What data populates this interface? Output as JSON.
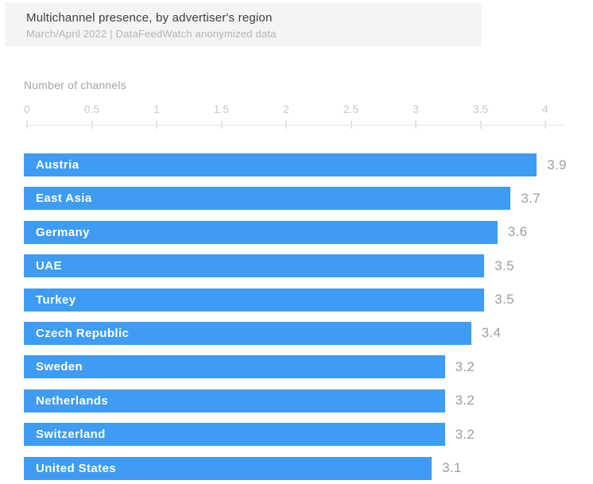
{
  "header": {
    "title": "Multichannel presence, by advertiser's region",
    "subtitle": "March/April 2022 | DataFeedWatch anonymized data"
  },
  "axis": {
    "label": "Number of channels",
    "tick_labels": [
      "0",
      "0.5",
      "1",
      "1.5",
      "2",
      "2.5",
      "3",
      "3.5",
      "4"
    ]
  },
  "chart_data": {
    "type": "bar",
    "orientation": "horizontal",
    "title": "Multichannel presence, by advertiser's region",
    "subtitle": "March/April 2022 | DataFeedWatch anonymized data",
    "xlabel": "Number of channels",
    "ylabel": "",
    "xlim": [
      0,
      4
    ],
    "x_ticks": [
      0,
      0.5,
      1,
      1.5,
      2,
      2.5,
      3,
      3.5,
      4
    ],
    "grid": false,
    "legend": false,
    "categories": [
      "Austria",
      "East Asia",
      "Germany",
      "UAE",
      "Turkey",
      "Czech Republic",
      "Sweden",
      "Netherlands",
      "Switzerland",
      "United States"
    ],
    "values": [
      3.9,
      3.7,
      3.6,
      3.5,
      3.5,
      3.4,
      3.2,
      3.2,
      3.2,
      3.1
    ],
    "value_labels": [
      "3.9",
      "3.7",
      "3.6",
      "3.5",
      "3.5",
      "3.4",
      "3.2",
      "3.2",
      "3.2",
      "3.1"
    ]
  },
  "colors": {
    "bar": "#3e9cf5",
    "bar_label": "#ffffff",
    "value_label": "#9d9d9d",
    "header_bg": "#f4f4f6",
    "title": "#3d3d3d",
    "subtitle": "#b4b4b4",
    "axis_title": "#a5a5a5",
    "tick_label": "#c7c7c7",
    "axis_line": "#e3e3e3",
    "background": "#ffffff"
  }
}
